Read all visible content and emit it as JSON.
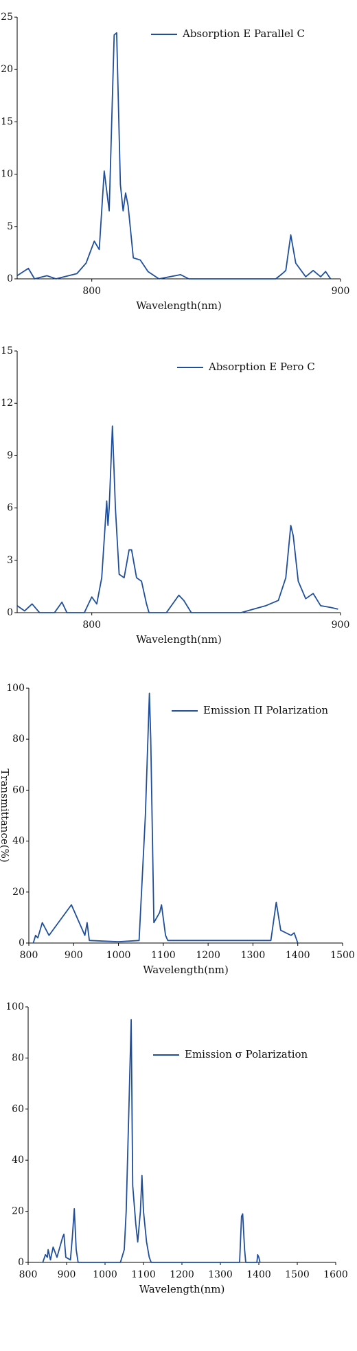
{
  "chart_data": [
    {
      "type": "line",
      "xlabel": "Wavelength(nm)",
      "xlim": [
        770,
        900
      ],
      "xticks": [
        800,
        900
      ],
      "ylim": [
        0,
        25
      ],
      "yticks": [
        0,
        5,
        10,
        15,
        20,
        25
      ],
      "x": [
        770,
        774.5,
        777,
        782,
        785.6,
        794,
        797.7,
        801,
        803,
        805,
        807,
        809,
        810,
        811.5,
        812.6,
        813.6,
        814.6,
        816.7,
        819.5,
        822.6,
        827,
        835.7,
        839,
        874,
        876.6,
        878,
        880,
        882,
        886,
        889,
        892,
        894,
        896
      ],
      "series": [
        {
          "name": "Absorption E Parallel C",
          "color": "#1f4e9c",
          "values": [
            0.3,
            1,
            0,
            0.3,
            0,
            0.5,
            1.5,
            3.6,
            2.8,
            10.3,
            6.5,
            23.3,
            23.5,
            9,
            6.5,
            8.2,
            7,
            2,
            1.8,
            0.7,
            0,
            0.4,
            0,
            0,
            0.5,
            0.8,
            4.2,
            1.5,
            0.2,
            0.8,
            0.2,
            0.7,
            0
          ]
        }
      ]
    },
    {
      "type": "line",
      "xlabel": "Wavelength(nm)",
      "xlim": [
        770,
        900
      ],
      "xticks": [
        800,
        900
      ],
      "ylim": [
        0,
        15
      ],
      "yticks": [
        0,
        3,
        6,
        9,
        12,
        15
      ],
      "x": [
        770,
        773,
        776,
        779,
        785,
        788,
        790,
        797,
        800,
        802,
        804,
        806,
        806.5,
        807,
        808.3,
        809.5,
        811,
        813,
        815,
        816,
        818,
        820,
        822,
        823,
        830,
        833,
        835,
        837,
        840,
        860,
        865,
        870,
        875,
        878,
        880,
        881,
        883,
        886,
        889,
        892,
        896,
        899
      ],
      "series": [
        {
          "name": "Absorption E Pero C",
          "color": "#1f4e9c",
          "values": [
            0.4,
            0.1,
            0.5,
            0,
            0,
            0.6,
            0,
            0,
            0.9,
            0.5,
            2,
            6.4,
            5,
            6,
            10.7,
            6,
            2.2,
            2,
            3.6,
            3.6,
            2,
            1.8,
            0.5,
            0,
            0,
            0.6,
            1,
            0.7,
            0,
            0,
            0.2,
            0.4,
            0.7,
            2,
            5,
            4.4,
            1.8,
            0.8,
            1.1,
            0.4,
            0.3,
            0.2
          ]
        }
      ]
    },
    {
      "type": "line",
      "xlabel": "Wavelength(nm)",
      "ylabel": "Transmittance(%)",
      "xlim": [
        800,
        1500
      ],
      "xticks": [
        800,
        900,
        1000,
        1100,
        1200,
        1300,
        1400,
        1500
      ],
      "ylim": [
        0,
        100
      ],
      "yticks": [
        0,
        20,
        40,
        60,
        80,
        100
      ],
      "x": [
        810,
        815,
        820,
        830,
        845,
        895,
        925,
        930,
        935,
        1000,
        1046,
        1060,
        1069,
        1072,
        1079,
        1092,
        1096,
        1105,
        1110,
        1340,
        1352,
        1362,
        1385,
        1392,
        1400
      ],
      "series": [
        {
          "name": "Emission Π Polarization",
          "color": "#1f4e9c",
          "values": [
            0,
            3,
            2,
            8,
            3,
            15,
            3,
            8,
            1,
            0.5,
            1,
            50,
            98,
            80,
            8,
            12,
            15,
            3,
            1,
            1,
            16,
            5,
            3,
            4,
            0
          ]
        }
      ]
    },
    {
      "type": "line",
      "xlabel": "Wavelength(nm)",
      "xlim": [
        800,
        1600
      ],
      "xticks": [
        800,
        900,
        1000,
        1100,
        1200,
        1300,
        1400,
        1500,
        1600
      ],
      "ylim": [
        0,
        100
      ],
      "yticks": [
        0,
        20,
        40,
        60,
        80,
        100
      ],
      "x": [
        838,
        845,
        850,
        852,
        858,
        865,
        875,
        890,
        893,
        898,
        910,
        915,
        920,
        925,
        930,
        1040,
        1050,
        1055,
        1062,
        1068,
        1072,
        1080,
        1085,
        1092,
        1096,
        1100,
        1108,
        1115,
        1120,
        1200,
        1350,
        1355,
        1358,
        1363,
        1366,
        1395,
        1397,
        1400,
        1403
      ],
      "series": [
        {
          "name": "Emission σ Polarization",
          "color": "#1f4e9c",
          "values": [
            0,
            3,
            2,
            5,
            1,
            6,
            2,
            10,
            11,
            2,
            1,
            10,
            21,
            5,
            0,
            0,
            5,
            20,
            60,
            95,
            30,
            15,
            8,
            20,
            34,
            20,
            8,
            2,
            0,
            0,
            0,
            18,
            19,
            5,
            0,
            0,
            3,
            2,
            0
          ]
        }
      ]
    }
  ]
}
